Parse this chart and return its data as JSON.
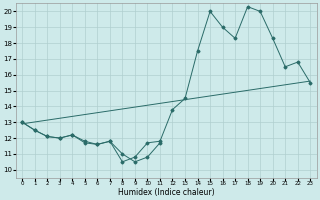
{
  "xlabel": "Humidex (Indice chaleur)",
  "x": [
    0,
    1,
    2,
    3,
    4,
    5,
    6,
    7,
    8,
    9,
    10,
    11,
    12,
    13,
    14,
    15,
    16,
    17,
    18,
    19,
    20,
    21,
    22,
    23
  ],
  "line_color": "#2a6b68",
  "bg_color": "#ceeaea",
  "grid_color": "#b0cfcf",
  "ylim": [
    9.5,
    20.5
  ],
  "xlim": [
    -0.5,
    23.5
  ],
  "yticks": [
    10,
    11,
    12,
    13,
    14,
    15,
    16,
    17,
    18,
    19,
    20
  ],
  "xticks": [
    0,
    1,
    2,
    3,
    4,
    5,
    6,
    7,
    8,
    9,
    10,
    11,
    12,
    13,
    14,
    15,
    16,
    17,
    18,
    19,
    20,
    21,
    22,
    23
  ],
  "line_main": [
    13,
    12.5,
    12.1,
    12.0,
    12.2,
    11.8,
    11.6,
    11.8,
    10.5,
    10.8,
    11.7,
    11.8,
    13.8,
    14.5,
    17.5,
    20.0,
    19.0,
    18.3,
    20.3,
    20.0,
    18.3,
    16.5,
    16.8,
    15.5
  ],
  "line_low": [
    13,
    12.5,
    12.1,
    12.0,
    12.2,
    11.7,
    11.6,
    11.8,
    11.0,
    10.5,
    10.8,
    11.7
  ],
  "line_low_x": [
    0,
    1,
    2,
    3,
    4,
    5,
    6,
    7,
    8,
    9,
    10,
    11
  ],
  "line_trend_x": [
    0,
    23
  ],
  "line_trend_y": [
    12.9,
    15.6
  ]
}
